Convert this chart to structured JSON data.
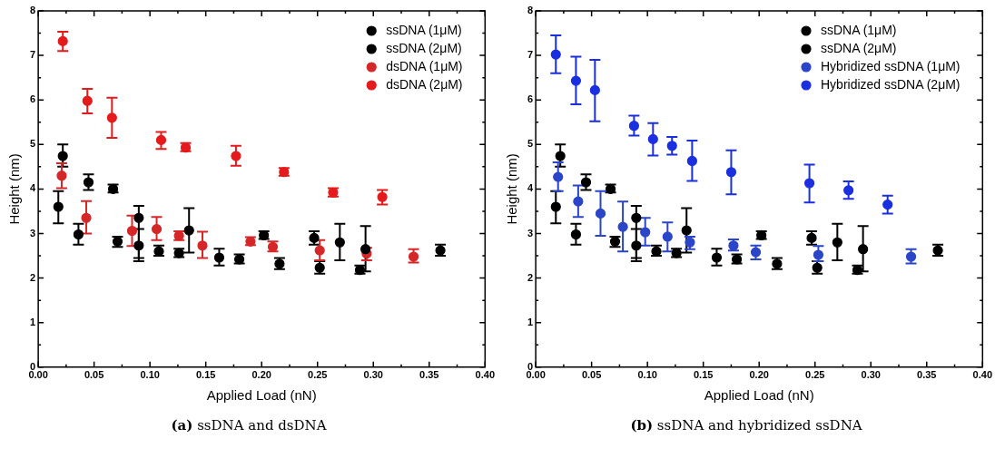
{
  "chart_data": [
    {
      "type": "scatter",
      "xlabel": "Applied Load (nN)",
      "ylabel": "Height (nm)",
      "annotations": [
        "(a) ssDNA and dsDNA"
      ],
      "xlim": [
        0,
        0.4
      ],
      "ylim": [
        0,
        8
      ],
      "xticks": [
        {
          "value": 0,
          "label": "0.00"
        },
        {
          "value": 0.025,
          "label": null
        },
        {
          "value": 0.05,
          "label": "0.05"
        },
        {
          "value": 0.075,
          "label": null
        },
        {
          "value": 0.1,
          "label": "0.10"
        },
        {
          "value": 0.125,
          "label": null
        },
        {
          "value": 0.15,
          "label": "0.15"
        },
        {
          "value": 0.175,
          "label": null
        },
        {
          "value": 0.2,
          "label": "0.20"
        },
        {
          "value": 0.225,
          "label": null
        },
        {
          "value": 0.25,
          "label": "0.25"
        },
        {
          "value": 0.275,
          "label": null
        },
        {
          "value": 0.3,
          "label": "0.30"
        },
        {
          "value": 0.325,
          "label": null
        },
        {
          "value": 0.35,
          "label": "0.35"
        },
        {
          "value": 0.375,
          "label": null
        },
        {
          "value": 0.4,
          "label": "0.40"
        }
      ],
      "yticks": [
        0,
        {
          "value": 0.5,
          "label": null
        },
        1,
        {
          "value": 1.5,
          "label": null
        },
        2,
        {
          "value": 2.5,
          "label": null
        },
        3,
        {
          "value": 3.5,
          "label": null
        },
        4,
        {
          "value": 4.5,
          "label": null
        },
        5,
        {
          "value": 5.5,
          "label": null
        },
        6,
        {
          "value": 6.5,
          "label": null
        },
        7,
        {
          "value": 7.5,
          "label": null
        },
        8
      ],
      "grid": false,
      "legend": "top right",
      "marker": "circle",
      "series": [
        {
          "name": "ssDNA (1μM)",
          "color": "#000000",
          "x": [
            0.018,
            0.036,
            0.071,
            0.09,
            0.108,
            0.126,
            0.162,
            0.18,
            0.216,
            0.252,
            0.288
          ],
          "values": [
            3.6,
            2.98,
            2.82,
            2.73,
            2.6,
            2.56,
            2.46,
            2.42,
            2.32,
            2.23,
            2.18
          ],
          "errors": [
            [
              3.23,
              3.95
            ],
            [
              2.75,
              3.22
            ],
            [
              2.7,
              2.93
            ],
            [
              2.45,
              3.1
            ],
            [
              2.5,
              2.73
            ],
            [
              2.47,
              2.66
            ],
            [
              2.28,
              2.66
            ],
            [
              2.33,
              2.53
            ],
            [
              2.2,
              2.45
            ],
            [
              2.1,
              2.38
            ],
            [
              2.1,
              2.28
            ]
          ]
        },
        {
          "name": "ssDNA (2μM)",
          "color": "#000000",
          "x": [
            0.022,
            0.045,
            0.067,
            0.09,
            0.135,
            0.202,
            0.247,
            0.27,
            0.293,
            0.36
          ],
          "values": [
            4.74,
            4.15,
            4.0,
            3.35,
            3.07,
            2.96,
            2.9,
            2.8,
            2.65,
            2.62
          ],
          "errors": [
            [
              4.5,
              5.0
            ],
            [
              3.98,
              4.33
            ],
            [
              3.92,
              4.1
            ],
            [
              2.38,
              3.62
            ],
            [
              2.57,
              3.57
            ],
            [
              2.88,
              3.05
            ],
            [
              2.75,
              3.05
            ],
            [
              2.4,
              3.22
            ],
            [
              2.15,
              3.17
            ],
            [
              2.5,
              2.75
            ]
          ]
        },
        {
          "name": "dsDNA (1μM)",
          "color": "#d62728",
          "x": [
            0.021,
            0.043,
            0.084,
            0.106,
            0.126,
            0.147,
            0.19,
            0.21,
            0.252,
            0.294,
            0.336
          ],
          "values": [
            4.3,
            3.35,
            3.06,
            3.1,
            2.95,
            2.73,
            2.82,
            2.7,
            2.62,
            2.55,
            2.48
          ],
          "errors": [
            [
              4.02,
              4.58
            ],
            [
              3.0,
              3.73
            ],
            [
              2.72,
              3.4
            ],
            [
              2.85,
              3.37
            ],
            [
              2.85,
              3.05
            ],
            [
              2.45,
              3.04
            ],
            [
              2.74,
              2.92
            ],
            [
              2.6,
              2.82
            ],
            [
              2.4,
              2.85
            ],
            [
              2.4,
              2.68
            ],
            [
              2.35,
              2.65
            ]
          ]
        },
        {
          "name": "dsDNA (2μM)",
          "color": "#e41a1c",
          "x": [
            0.022,
            0.044,
            0.066,
            0.11,
            0.132,
            0.177,
            0.22,
            0.264,
            0.308
          ],
          "values": [
            7.32,
            5.98,
            5.6,
            5.1,
            4.93,
            4.74,
            4.38,
            3.92,
            3.82
          ],
          "errors": [
            [
              7.1,
              7.53
            ],
            [
              5.7,
              6.25
            ],
            [
              5.15,
              6.05
            ],
            [
              4.9,
              5.28
            ],
            [
              4.85,
              5.03
            ],
            [
              4.52,
              4.97
            ],
            [
              4.3,
              4.47
            ],
            [
              3.83,
              4.02
            ],
            [
              3.65,
              3.98
            ]
          ]
        }
      ]
    },
    {
      "type": "scatter",
      "xlabel": "Applied Load (nN)",
      "ylabel": "Height (nm)",
      "annotations": [
        "(b) ssDNA and hybridized ssDNA"
      ],
      "xlim": [
        0,
        0.4
      ],
      "ylim": [
        0,
        8
      ],
      "xticks": [
        {
          "value": 0,
          "label": "0.00"
        },
        {
          "value": 0.025,
          "label": null
        },
        {
          "value": 0.05,
          "label": "0.05"
        },
        {
          "value": 0.075,
          "label": null
        },
        {
          "value": 0.1,
          "label": "0.10"
        },
        {
          "value": 0.125,
          "label": null
        },
        {
          "value": 0.15,
          "label": "0.15"
        },
        {
          "value": 0.175,
          "label": null
        },
        {
          "value": 0.2,
          "label": "0.20"
        },
        {
          "value": 0.225,
          "label": null
        },
        {
          "value": 0.25,
          "label": "0.25"
        },
        {
          "value": 0.275,
          "label": null
        },
        {
          "value": 0.3,
          "label": "0.30"
        },
        {
          "value": 0.325,
          "label": null
        },
        {
          "value": 0.35,
          "label": "0.35"
        },
        {
          "value": 0.375,
          "label": null
        },
        {
          "value": 0.4,
          "label": "0.40"
        }
      ],
      "yticks": [
        0,
        {
          "value": 0.5,
          "label": null
        },
        1,
        {
          "value": 1.5,
          "label": null
        },
        2,
        {
          "value": 2.5,
          "label": null
        },
        3,
        {
          "value": 3.5,
          "label": null
        },
        4,
        {
          "value": 4.5,
          "label": null
        },
        5,
        {
          "value": 5.5,
          "label": null
        },
        6,
        {
          "value": 6.5,
          "label": null
        },
        7,
        {
          "value": 7.5,
          "label": null
        },
        8
      ],
      "grid": false,
      "legend": "top right",
      "marker": "circle",
      "series": [
        {
          "name": "ssDNA (1μM)",
          "color": "#000000",
          "x": [
            0.018,
            0.036,
            0.071,
            0.09,
            0.108,
            0.126,
            0.162,
            0.18,
            0.216,
            0.252,
            0.288
          ],
          "values": [
            3.6,
            2.98,
            2.82,
            2.73,
            2.6,
            2.56,
            2.46,
            2.42,
            2.32,
            2.23,
            2.18
          ],
          "errors": [
            [
              3.23,
              3.95
            ],
            [
              2.75,
              3.22
            ],
            [
              2.7,
              2.93
            ],
            [
              2.45,
              3.1
            ],
            [
              2.5,
              2.73
            ],
            [
              2.47,
              2.66
            ],
            [
              2.28,
              2.66
            ],
            [
              2.33,
              2.53
            ],
            [
              2.2,
              2.45
            ],
            [
              2.1,
              2.38
            ],
            [
              2.1,
              2.28
            ]
          ]
        },
        {
          "name": "ssDNA (2μM)",
          "color": "#000000",
          "x": [
            0.022,
            0.045,
            0.067,
            0.09,
            0.135,
            0.202,
            0.247,
            0.27,
            0.293,
            0.36
          ],
          "values": [
            4.74,
            4.15,
            4.0,
            3.35,
            3.07,
            2.96,
            2.9,
            2.8,
            2.65,
            2.62
          ],
          "errors": [
            [
              4.5,
              5.0
            ],
            [
              3.98,
              4.33
            ],
            [
              3.92,
              4.1
            ],
            [
              2.38,
              3.62
            ],
            [
              2.57,
              3.57
            ],
            [
              2.88,
              3.05
            ],
            [
              2.75,
              3.05
            ],
            [
              2.4,
              3.22
            ],
            [
              2.15,
              3.17
            ],
            [
              2.5,
              2.75
            ]
          ]
        },
        {
          "name": "Hybridized ssDNA (1μM)",
          "color": "#2b45c8",
          "x": [
            0.02,
            0.038,
            0.058,
            0.078,
            0.098,
            0.118,
            0.138,
            0.177,
            0.197,
            0.253,
            0.336
          ],
          "values": [
            4.27,
            3.72,
            3.45,
            3.15,
            3.03,
            2.93,
            2.8,
            2.73,
            2.58,
            2.52,
            2.48
          ],
          "errors": [
            [
              3.95,
              4.6
            ],
            [
              3.37,
              4.08
            ],
            [
              2.95,
              3.95
            ],
            [
              2.6,
              3.72
            ],
            [
              2.73,
              3.35
            ],
            [
              2.6,
              3.25
            ],
            [
              2.65,
              2.93
            ],
            [
              2.62,
              2.87
            ],
            [
              2.42,
              2.73
            ],
            [
              2.38,
              2.72
            ],
            [
              2.33,
              2.65
            ]
          ]
        },
        {
          "name": "Hybridized ssDNA (2μM)",
          "color": "#1a2fe0",
          "x": [
            0.018,
            0.036,
            0.053,
            0.088,
            0.105,
            0.122,
            0.14,
            0.175,
            0.245,
            0.28,
            0.315
          ],
          "values": [
            7.02,
            6.43,
            6.22,
            5.42,
            5.12,
            4.97,
            4.63,
            4.38,
            4.13,
            3.97,
            3.65
          ],
          "errors": [
            [
              6.6,
              7.45
            ],
            [
              5.9,
              6.97
            ],
            [
              5.52,
              6.9
            ],
            [
              5.2,
              5.65
            ],
            [
              4.75,
              5.48
            ],
            [
              4.77,
              5.17
            ],
            [
              4.18,
              5.09
            ],
            [
              3.88,
              4.87
            ],
            [
              3.7,
              4.55
            ],
            [
              3.78,
              4.17
            ],
            [
              3.45,
              3.85
            ]
          ]
        }
      ]
    }
  ]
}
